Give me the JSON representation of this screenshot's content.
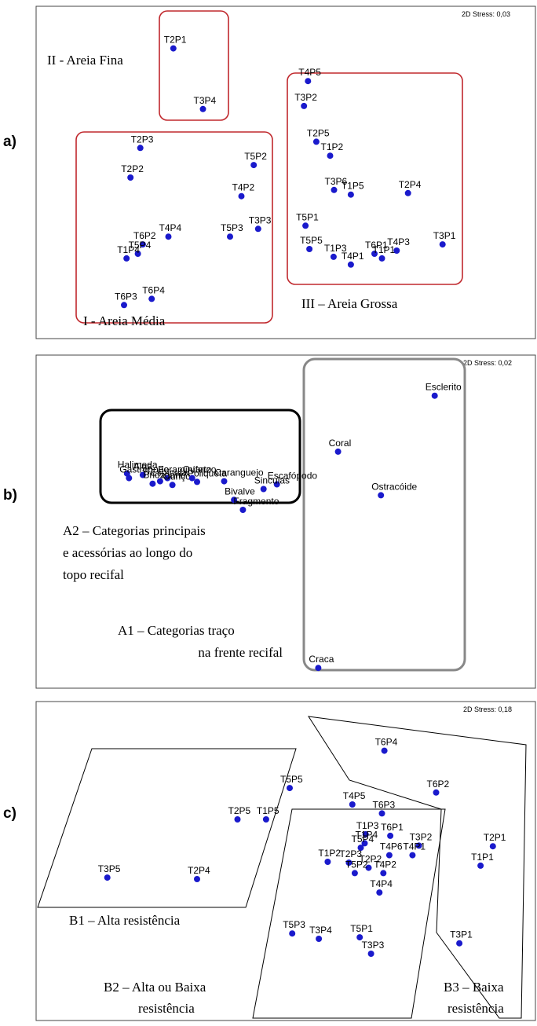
{
  "panel_labels": [
    "a)",
    "b)",
    "c)"
  ],
  "chart_data": [
    {
      "type": "scatter",
      "panel": "a)",
      "stress": "2D Stress: 0,03",
      "points": [
        {
          "label": "T2P1",
          "x": 0.272,
          "y": 0.905
        },
        {
          "label": "T3P4",
          "x": 0.332,
          "y": 0.71
        },
        {
          "label": "T4P5",
          "x": 0.545,
          "y": 0.8
        },
        {
          "label": "T3P2",
          "x": 0.537,
          "y": 0.72
        },
        {
          "label": "T2P5",
          "x": 0.562,
          "y": 0.605
        },
        {
          "label": "T1P2",
          "x": 0.59,
          "y": 0.56
        },
        {
          "label": "T3P6",
          "x": 0.598,
          "y": 0.45
        },
        {
          "label": "T1P5",
          "x": 0.632,
          "y": 0.435
        },
        {
          "label": "T2P4",
          "x": 0.748,
          "y": 0.44
        },
        {
          "label": "T5P1",
          "x": 0.54,
          "y": 0.335
        },
        {
          "label": "T5P5",
          "x": 0.548,
          "y": 0.26
        },
        {
          "label": "T1P3",
          "x": 0.597,
          "y": 0.235
        },
        {
          "label": "T4P1",
          "x": 0.632,
          "y": 0.21
        },
        {
          "label": "T6P1",
          "x": 0.68,
          "y": 0.245
        },
        {
          "label": "T1P1",
          "x": 0.695,
          "y": 0.23
        },
        {
          "label": "T4P3",
          "x": 0.725,
          "y": 0.255
        },
        {
          "label": "T3P1",
          "x": 0.818,
          "y": 0.275
        },
        {
          "label": "T2P3",
          "x": 0.205,
          "y": 0.585
        },
        {
          "label": "T2P2",
          "x": 0.185,
          "y": 0.49
        },
        {
          "label": "T5P2",
          "x": 0.435,
          "y": 0.53
        },
        {
          "label": "T4P2",
          "x": 0.41,
          "y": 0.43
        },
        {
          "label": "T3P3",
          "x": 0.444,
          "y": 0.325
        },
        {
          "label": "T5P3",
          "x": 0.387,
          "y": 0.3
        },
        {
          "label": "T4P4",
          "x": 0.262,
          "y": 0.3
        },
        {
          "label": "T6P2",
          "x": 0.21,
          "y": 0.275
        },
        {
          "label": "T5P4",
          "x": 0.2,
          "y": 0.245
        },
        {
          "label": "T1P4",
          "x": 0.177,
          "y": 0.23
        },
        {
          "label": "T6P4",
          "x": 0.228,
          "y": 0.1
        },
        {
          "label": "T6P3",
          "x": 0.172,
          "y": 0.08
        }
      ]
    },
    {
      "type": "scatter",
      "panel": "b)",
      "stress": "2D Stress: 0,02",
      "points": [
        {
          "label": "Esclerito",
          "x": 0.802,
          "y": 0.915
        },
        {
          "label": "Coral",
          "x": 0.606,
          "y": 0.735
        },
        {
          "label": "Ostracóide",
          "x": 0.693,
          "y": 0.595
        },
        {
          "label": "Craca",
          "x": 0.566,
          "y": 0.04
        },
        {
          "label": "Halimeda",
          "x": 0.178,
          "y": 0.665
        },
        {
          "label": "Gastrópode",
          "x": 0.182,
          "y": 0.65
        },
        {
          "label": "Alga",
          "x": 0.21,
          "y": 0.66
        },
        {
          "label": "Foraminífero",
          "x": 0.26,
          "y": 0.65
        },
        {
          "label": "Espícula",
          "x": 0.245,
          "y": 0.64
        },
        {
          "label": "Briozoário",
          "x": 0.23,
          "y": 0.632
        },
        {
          "label": "Ouriço",
          "x": 0.27,
          "y": 0.628
        },
        {
          "label": "Poliqueta",
          "x": 0.32,
          "y": 0.638
        },
        {
          "label": "Quartzo",
          "x": 0.31,
          "y": 0.65
        },
        {
          "label": "Escafópodo",
          "x": 0.482,
          "y": 0.63
        },
        {
          "label": "Sinculas",
          "x": 0.455,
          "y": 0.615
        },
        {
          "label": "Caranguejo",
          "x": 0.375,
          "y": 0.64
        },
        {
          "label": "Bivalve",
          "x": 0.395,
          "y": 0.58
        },
        {
          "label": "Fragmento",
          "x": 0.413,
          "y": 0.548
        }
      ]
    },
    {
      "type": "scatter",
      "panel": "c)",
      "stress": "2D Stress: 0,18",
      "points": [
        {
          "label": "T6P4",
          "x": 0.7,
          "y": 0.88
        },
        {
          "label": "T6P2",
          "x": 0.805,
          "y": 0.74
        },
        {
          "label": "T5P5",
          "x": 0.508,
          "y": 0.755
        },
        {
          "label": "T2P5",
          "x": 0.402,
          "y": 0.65
        },
        {
          "label": "T1P5",
          "x": 0.46,
          "y": 0.65
        },
        {
          "label": "T4P5",
          "x": 0.635,
          "y": 0.7
        },
        {
          "label": "T6P3",
          "x": 0.695,
          "y": 0.67
        },
        {
          "label": "T1P3",
          "x": 0.662,
          "y": 0.6
        },
        {
          "label": "T6P1",
          "x": 0.712,
          "y": 0.595
        },
        {
          "label": "T1P4",
          "x": 0.66,
          "y": 0.57
        },
        {
          "label": "T5P4",
          "x": 0.652,
          "y": 0.555
        },
        {
          "label": "T3P2",
          "x": 0.77,
          "y": 0.562
        },
        {
          "label": "T4P6",
          "x": 0.71,
          "y": 0.53
        },
        {
          "label": "T4P1",
          "x": 0.757,
          "y": 0.53
        },
        {
          "label": "T1P2",
          "x": 0.585,
          "y": 0.508
        },
        {
          "label": "T2P3",
          "x": 0.628,
          "y": 0.505
        },
        {
          "label": "T2P2",
          "x": 0.668,
          "y": 0.488
        },
        {
          "label": "T5P2",
          "x": 0.64,
          "y": 0.47
        },
        {
          "label": "T4P2",
          "x": 0.698,
          "y": 0.47
        },
        {
          "label": "T4P4",
          "x": 0.69,
          "y": 0.405
        },
        {
          "label": "T2P1",
          "x": 0.92,
          "y": 0.56
        },
        {
          "label": "T1P1",
          "x": 0.895,
          "y": 0.495
        },
        {
          "label": "T3P5",
          "x": 0.138,
          "y": 0.455
        },
        {
          "label": "T2P4",
          "x": 0.32,
          "y": 0.45
        },
        {
          "label": "T5P3",
          "x": 0.513,
          "y": 0.268
        },
        {
          "label": "T3P4",
          "x": 0.567,
          "y": 0.25
        },
        {
          "label": "T5P1",
          "x": 0.65,
          "y": 0.255
        },
        {
          "label": "T3P3",
          "x": 0.673,
          "y": 0.2
        },
        {
          "label": "T3P1",
          "x": 0.852,
          "y": 0.235
        }
      ]
    }
  ],
  "groups": {
    "a": [
      "II - Areia Fina",
      "I - Areia Média",
      "III – Areia Grossa"
    ],
    "b": [
      [
        "A2 – Categorias principais",
        "e acessórias ao longo do",
        "topo recifal"
      ],
      [
        "A1 – Categorias traço",
        "na frente recifal"
      ]
    ],
    "c": [
      [
        "B1 – Alta resistência"
      ],
      [
        "B2 – Alta ou Baixa",
        "resistência"
      ],
      [
        "B3 – Baixa",
        "resistência"
      ]
    ]
  },
  "colors": {
    "points": "#1a1acc",
    "group_a_box": "#c0282d",
    "group_b2_box": "#888888"
  }
}
